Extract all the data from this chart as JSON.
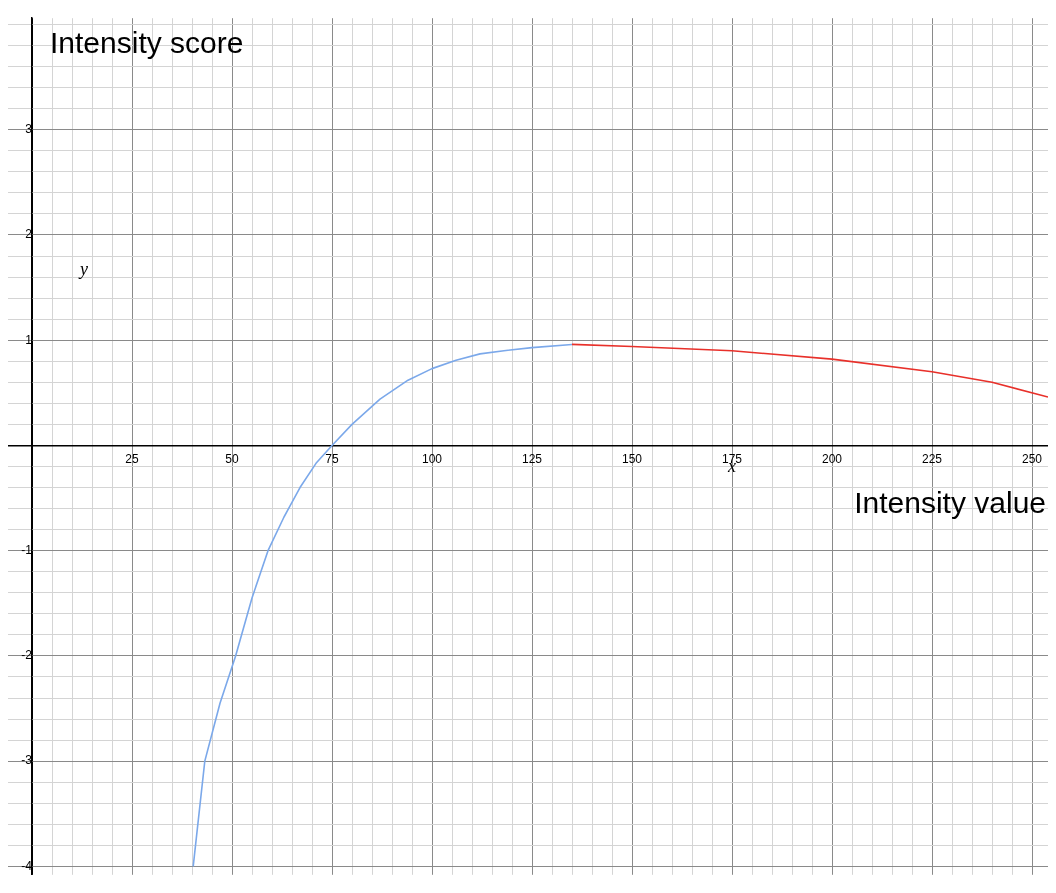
{
  "chart_data": {
    "type": "line",
    "xlabel": "Intensity value",
    "ylabel": "Intensity score",
    "annotations": [
      "x",
      "y"
    ],
    "xlim": [
      -6,
      254
    ],
    "ylim": [
      -4.08,
      4.06
    ],
    "xticks": [
      {
        "value": 0,
        "label": null
      },
      {
        "value": 5,
        "label": null
      },
      {
        "value": 10,
        "label": null
      },
      {
        "value": 15,
        "label": null
      },
      {
        "value": 20,
        "label": null
      },
      25,
      {
        "value": 30,
        "label": null
      },
      {
        "value": 35,
        "label": null
      },
      {
        "value": 40,
        "label": null
      },
      {
        "value": 45,
        "label": null
      },
      50,
      {
        "value": 55,
        "label": null
      },
      {
        "value": 60,
        "label": null
      },
      {
        "value": 65,
        "label": null
      },
      {
        "value": 70,
        "label": null
      },
      75,
      {
        "value": 80,
        "label": null
      },
      {
        "value": 85,
        "label": null
      },
      {
        "value": 90,
        "label": null
      },
      {
        "value": 95,
        "label": null
      },
      100,
      {
        "value": 105,
        "label": null
      },
      {
        "value": 110,
        "label": null
      },
      {
        "value": 115,
        "label": null
      },
      {
        "value": 120,
        "label": null
      },
      125,
      {
        "value": 130,
        "label": null
      },
      {
        "value": 135,
        "label": null
      },
      {
        "value": 140,
        "label": null
      },
      {
        "value": 145,
        "label": null
      },
      150,
      {
        "value": 155,
        "label": null
      },
      {
        "value": 160,
        "label": null
      },
      {
        "value": 165,
        "label": null
      },
      {
        "value": 170,
        "label": null
      },
      175,
      {
        "value": 180,
        "label": null
      },
      {
        "value": 185,
        "label": null
      },
      {
        "value": 190,
        "label": null
      },
      {
        "value": 195,
        "label": null
      },
      200,
      {
        "value": 205,
        "label": null
      },
      {
        "value": 210,
        "label": null
      },
      {
        "value": 215,
        "label": null
      },
      {
        "value": 220,
        "label": null
      },
      225,
      {
        "value": 230,
        "label": null
      },
      {
        "value": 235,
        "label": null
      },
      {
        "value": 240,
        "label": null
      },
      {
        "value": 245,
        "label": null
      },
      250
    ],
    "yticks": [
      -4,
      {
        "value": -3.8,
        "label": null
      },
      {
        "value": -3.6,
        "label": null
      },
      {
        "value": -3.4,
        "label": null
      },
      {
        "value": -3.2,
        "label": null
      },
      -3,
      {
        "value": -2.8,
        "label": null
      },
      {
        "value": -2.6,
        "label": null
      },
      {
        "value": -2.4,
        "label": null
      },
      {
        "value": -2.2,
        "label": null
      },
      -2,
      {
        "value": -1.8,
        "label": null
      },
      {
        "value": -1.6,
        "label": null
      },
      {
        "value": -1.4,
        "label": null
      },
      {
        "value": -1.2,
        "label": null
      },
      -1,
      {
        "value": -0.8,
        "label": null
      },
      {
        "value": -0.6,
        "label": null
      },
      {
        "value": -0.4,
        "label": null
      },
      {
        "value": -0.2,
        "label": null
      },
      {
        "value": 0,
        "label": null
      },
      {
        "value": 0.2,
        "label": null
      },
      {
        "value": 0.4,
        "label": null
      },
      {
        "value": 0.6,
        "label": null
      },
      {
        "value": 0.8,
        "label": null
      },
      1,
      {
        "value": 1.2,
        "label": null
      },
      {
        "value": 1.4,
        "label": null
      },
      {
        "value": 1.6,
        "label": null
      },
      {
        "value": 1.8,
        "label": null
      },
      2,
      {
        "value": 2.2,
        "label": null
      },
      {
        "value": 2.4,
        "label": null
      },
      {
        "value": 2.6,
        "label": null
      },
      {
        "value": 2.8,
        "label": null
      },
      3,
      {
        "value": 3.2,
        "label": null
      },
      {
        "value": 3.4,
        "label": null
      },
      {
        "value": 3.6,
        "label": null
      },
      {
        "value": 3.8,
        "label": null
      },
      {
        "value": 4,
        "label": null
      }
    ],
    "grid": true,
    "legend": false,
    "marker": "none",
    "line_style": "solid",
    "series": [
      {
        "color": "#7ba8ea",
        "x": [
          40.3,
          43.2,
          47,
          50.9,
          55,
          59,
          63,
          67,
          71,
          75,
          80,
          87,
          94,
          100,
          106,
          112,
          118,
          125,
          135
        ],
        "values": [
          -4,
          -3,
          -2.45,
          -2,
          -1.45,
          -1,
          -0.68,
          -0.4,
          -0.17,
          0,
          0.2,
          0.44,
          0.62,
          0.73,
          0.81,
          0.87,
          0.9,
          0.93,
          0.96
        ]
      },
      {
        "color": "#e8302a",
        "x": [
          135,
          150,
          175,
          200,
          225,
          240,
          254
        ],
        "values": [
          0.96,
          0.94,
          0.9,
          0.82,
          0.7,
          0.6,
          0.46
        ]
      }
    ]
  }
}
